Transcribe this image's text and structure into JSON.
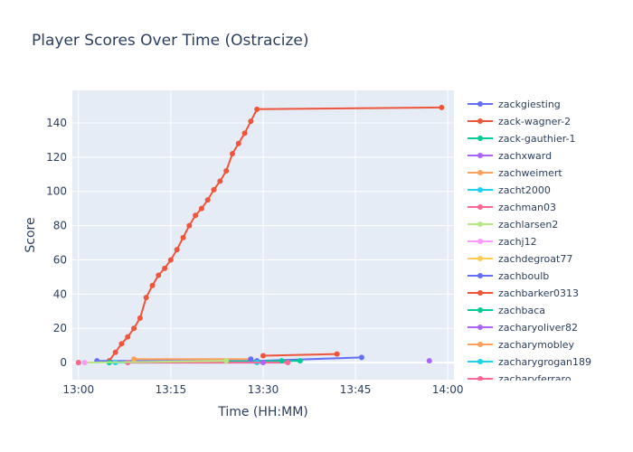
{
  "chart_data": {
    "type": "line",
    "title": "Player Scores Over Time (Ostracize)",
    "xlabel": "Time (HH:MM)",
    "ylabel": "Score",
    "x_ticks": [
      "13:00",
      "13:15",
      "13:30",
      "13:45",
      "14:00"
    ],
    "y_ticks": [
      0,
      20,
      40,
      60,
      80,
      100,
      120,
      140
    ],
    "xlim": [
      "12:59",
      "14:01"
    ],
    "ylim": [
      -10,
      159
    ],
    "grid": true,
    "legend_position": "right",
    "series": [
      {
        "name": "zackgiesting",
        "color": "#636efa",
        "points": [
          [
            "13:03",
            1
          ],
          [
            "13:29",
            1
          ],
          [
            "13:46",
            3
          ]
        ]
      },
      {
        "name": "zack-wagner-2",
        "color": "#EF553B",
        "points": [
          [
            "13:05",
            1
          ],
          [
            "13:06",
            6
          ],
          [
            "13:07",
            11
          ],
          [
            "13:08",
            15
          ],
          [
            "13:09",
            20
          ],
          [
            "13:10",
            26
          ],
          [
            "13:11",
            38
          ],
          [
            "13:12",
            45
          ],
          [
            "13:13",
            51
          ],
          [
            "13:14",
            55
          ],
          [
            "13:15",
            60
          ],
          [
            "13:16",
            66
          ],
          [
            "13:17",
            73
          ],
          [
            "13:18",
            80
          ],
          [
            "13:19",
            86
          ],
          [
            "13:20",
            90
          ],
          [
            "13:21",
            95
          ],
          [
            "13:22",
            101
          ],
          [
            "13:23",
            106
          ],
          [
            "13:24",
            112
          ],
          [
            "13:25",
            122
          ],
          [
            "13:26",
            128
          ],
          [
            "13:27",
            134
          ],
          [
            "13:28",
            141
          ],
          [
            "13:29",
            148
          ],
          [
            "13:59",
            149
          ]
        ]
      },
      {
        "name": "zack-gauthier-1",
        "color": "#00cc96",
        "points": [
          [
            "13:05",
            0
          ],
          [
            "13:36",
            1
          ]
        ]
      },
      {
        "name": "zachxward",
        "color": "#ab63fa",
        "points": [
          [
            "13:57",
            1
          ]
        ]
      },
      {
        "name": "zachweimert",
        "color": "#FFA15A",
        "points": [
          [
            "13:09",
            2
          ],
          [
            "13:28",
            2
          ]
        ]
      },
      {
        "name": "zacht2000",
        "color": "#19d3f3",
        "points": [
          [
            "13:06",
            0
          ],
          [
            "13:29",
            0
          ]
        ]
      },
      {
        "name": "zachman03",
        "color": "#FF6692",
        "points": [
          [
            "13:08",
            0
          ],
          [
            "13:34",
            0
          ]
        ]
      },
      {
        "name": "zachlarsen2",
        "color": "#B6E880",
        "points": [
          [
            "13:01",
            0
          ],
          [
            "13:24",
            1
          ]
        ]
      },
      {
        "name": "zachj12",
        "color": "#FF97FF",
        "points": [
          [
            "13:01",
            0
          ]
        ]
      },
      {
        "name": "zachdegroat77",
        "color": "#FECB52",
        "points": [
          [
            "13:00",
            0
          ]
        ]
      },
      {
        "name": "zachboulb",
        "color": "#636efa",
        "points": [
          [
            "13:28",
            2
          ]
        ]
      },
      {
        "name": "zachbarker0313",
        "color": "#EF553B",
        "points": [
          [
            "13:30",
            4
          ],
          [
            "13:42",
            5
          ]
        ]
      },
      {
        "name": "zachbaca",
        "color": "#00cc96",
        "points": [
          [
            "13:33",
            1
          ]
        ]
      },
      {
        "name": "zacharyoliver82",
        "color": "#ab63fa",
        "points": [
          [
            "13:30",
            0
          ]
        ]
      },
      {
        "name": "zacharymobley",
        "color": "#FFA15A",
        "points": [
          [
            "13:00",
            0
          ]
        ]
      },
      {
        "name": "zacharygrogan189",
        "color": "#19d3f3",
        "points": [
          [
            "13:00",
            0
          ]
        ]
      },
      {
        "name": "zacharyferraro",
        "color": "#FF6692",
        "points": [
          [
            "13:00",
            0
          ]
        ]
      }
    ]
  }
}
